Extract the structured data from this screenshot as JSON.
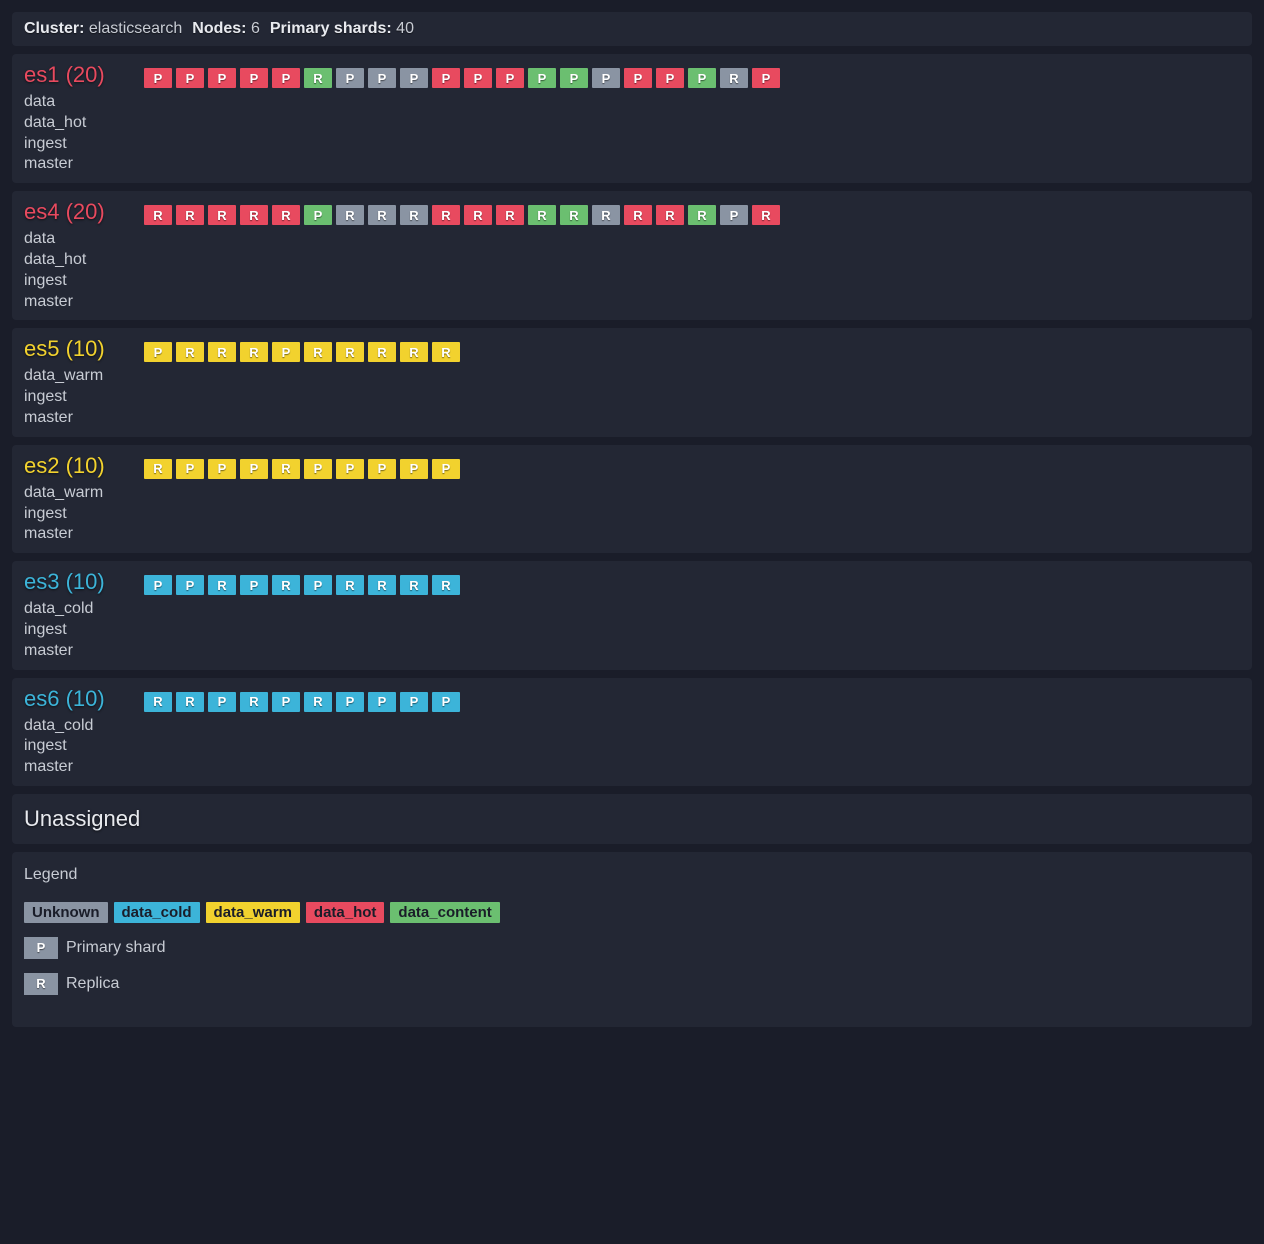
{
  "colors": {
    "unknown": "#8a94a3",
    "data_cold": "#3cb4d9",
    "data_warm": "#f2d22e",
    "data_hot": "#e84a5f",
    "data_content": "#6bbf70",
    "node_title_hot": "#e84a5f",
    "node_title_warm": "#f2d22e",
    "node_title_cold": "#3cb4d9",
    "unassigned_title": "#e8eaef",
    "legend_swatch_text": "#1a1d29"
  },
  "header": {
    "cluster_label": "Cluster:",
    "cluster_value": "elasticsearch",
    "nodes_label": "Nodes:",
    "nodes_value": "6",
    "shards_label": "Primary shards:",
    "shards_value": "40"
  },
  "nodes": [
    {
      "name": "es1",
      "count": "20",
      "title_color": "node_title_hot",
      "roles": [
        "data",
        "data_hot",
        "ingest",
        "master"
      ],
      "shards": [
        {
          "t": "P",
          "c": "data_hot"
        },
        {
          "t": "P",
          "c": "data_hot"
        },
        {
          "t": "P",
          "c": "data_hot"
        },
        {
          "t": "P",
          "c": "data_hot"
        },
        {
          "t": "P",
          "c": "data_hot"
        },
        {
          "t": "R",
          "c": "data_content"
        },
        {
          "t": "P",
          "c": "unknown"
        },
        {
          "t": "P",
          "c": "unknown"
        },
        {
          "t": "P",
          "c": "unknown"
        },
        {
          "t": "P",
          "c": "data_hot"
        },
        {
          "t": "P",
          "c": "data_hot"
        },
        {
          "t": "P",
          "c": "data_hot"
        },
        {
          "t": "P",
          "c": "data_content"
        },
        {
          "t": "P",
          "c": "data_content"
        },
        {
          "t": "P",
          "c": "unknown"
        },
        {
          "t": "P",
          "c": "data_hot"
        },
        {
          "t": "P",
          "c": "data_hot"
        },
        {
          "t": "P",
          "c": "data_content"
        },
        {
          "t": "R",
          "c": "unknown"
        },
        {
          "t": "P",
          "c": "data_hot"
        }
      ]
    },
    {
      "name": "es4",
      "count": "20",
      "title_color": "node_title_hot",
      "roles": [
        "data",
        "data_hot",
        "ingest",
        "master"
      ],
      "shards": [
        {
          "t": "R",
          "c": "data_hot"
        },
        {
          "t": "R",
          "c": "data_hot"
        },
        {
          "t": "R",
          "c": "data_hot"
        },
        {
          "t": "R",
          "c": "data_hot"
        },
        {
          "t": "R",
          "c": "data_hot"
        },
        {
          "t": "P",
          "c": "data_content"
        },
        {
          "t": "R",
          "c": "unknown"
        },
        {
          "t": "R",
          "c": "unknown"
        },
        {
          "t": "R",
          "c": "unknown"
        },
        {
          "t": "R",
          "c": "data_hot"
        },
        {
          "t": "R",
          "c": "data_hot"
        },
        {
          "t": "R",
          "c": "data_hot"
        },
        {
          "t": "R",
          "c": "data_content"
        },
        {
          "t": "R",
          "c": "data_content"
        },
        {
          "t": "R",
          "c": "unknown"
        },
        {
          "t": "R",
          "c": "data_hot"
        },
        {
          "t": "R",
          "c": "data_hot"
        },
        {
          "t": "R",
          "c": "data_content"
        },
        {
          "t": "P",
          "c": "unknown"
        },
        {
          "t": "R",
          "c": "data_hot"
        }
      ]
    },
    {
      "name": "es5",
      "count": "10",
      "title_color": "node_title_warm",
      "roles": [
        "data_warm",
        "ingest",
        "master"
      ],
      "shards": [
        {
          "t": "P",
          "c": "data_warm"
        },
        {
          "t": "R",
          "c": "data_warm"
        },
        {
          "t": "R",
          "c": "data_warm"
        },
        {
          "t": "R",
          "c": "data_warm"
        },
        {
          "t": "P",
          "c": "data_warm"
        },
        {
          "t": "R",
          "c": "data_warm"
        },
        {
          "t": "R",
          "c": "data_warm"
        },
        {
          "t": "R",
          "c": "data_warm"
        },
        {
          "t": "R",
          "c": "data_warm"
        },
        {
          "t": "R",
          "c": "data_warm"
        }
      ]
    },
    {
      "name": "es2",
      "count": "10",
      "title_color": "node_title_warm",
      "roles": [
        "data_warm",
        "ingest",
        "master"
      ],
      "shards": [
        {
          "t": "R",
          "c": "data_warm"
        },
        {
          "t": "P",
          "c": "data_warm"
        },
        {
          "t": "P",
          "c": "data_warm"
        },
        {
          "t": "P",
          "c": "data_warm"
        },
        {
          "t": "R",
          "c": "data_warm"
        },
        {
          "t": "P",
          "c": "data_warm"
        },
        {
          "t": "P",
          "c": "data_warm"
        },
        {
          "t": "P",
          "c": "data_warm"
        },
        {
          "t": "P",
          "c": "data_warm"
        },
        {
          "t": "P",
          "c": "data_warm"
        }
      ]
    },
    {
      "name": "es3",
      "count": "10",
      "title_color": "node_title_cold",
      "roles": [
        "data_cold",
        "ingest",
        "master"
      ],
      "shards": [
        {
          "t": "P",
          "c": "data_cold"
        },
        {
          "t": "P",
          "c": "data_cold"
        },
        {
          "t": "R",
          "c": "data_cold"
        },
        {
          "t": "P",
          "c": "data_cold"
        },
        {
          "t": "R",
          "c": "data_cold"
        },
        {
          "t": "P",
          "c": "data_cold"
        },
        {
          "t": "R",
          "c": "data_cold"
        },
        {
          "t": "R",
          "c": "data_cold"
        },
        {
          "t": "R",
          "c": "data_cold"
        },
        {
          "t": "R",
          "c": "data_cold"
        }
      ]
    },
    {
      "name": "es6",
      "count": "10",
      "title_color": "node_title_cold",
      "roles": [
        "data_cold",
        "ingest",
        "master"
      ],
      "shards": [
        {
          "t": "R",
          "c": "data_cold"
        },
        {
          "t": "R",
          "c": "data_cold"
        },
        {
          "t": "P",
          "c": "data_cold"
        },
        {
          "t": "R",
          "c": "data_cold"
        },
        {
          "t": "P",
          "c": "data_cold"
        },
        {
          "t": "R",
          "c": "data_cold"
        },
        {
          "t": "P",
          "c": "data_cold"
        },
        {
          "t": "P",
          "c": "data_cold"
        },
        {
          "t": "P",
          "c": "data_cold"
        },
        {
          "t": "P",
          "c": "data_cold"
        }
      ]
    }
  ],
  "unassigned": {
    "title": "Unassigned"
  },
  "legend": {
    "title": "Legend",
    "tiers": [
      {
        "label": "Unknown",
        "color": "unknown"
      },
      {
        "label": "data_cold",
        "color": "data_cold"
      },
      {
        "label": "data_warm",
        "color": "data_warm"
      },
      {
        "label": "data_hot",
        "color": "data_hot"
      },
      {
        "label": "data_content",
        "color": "data_content"
      }
    ],
    "primary": {
      "symbol": "P",
      "label": "Primary shard",
      "color": "unknown"
    },
    "replica": {
      "symbol": "R",
      "label": "Replica",
      "color": "unknown"
    }
  }
}
